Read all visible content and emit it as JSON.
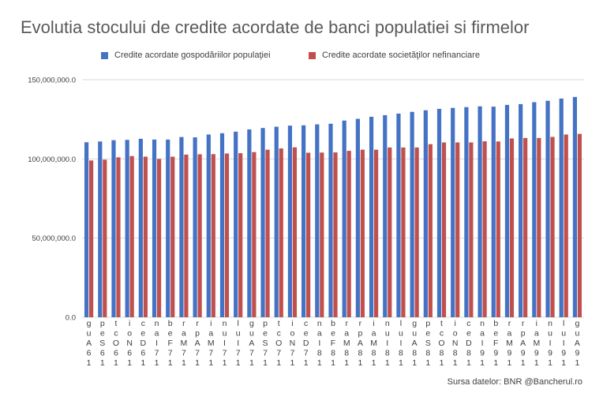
{
  "chart_data": {
    "type": "bar",
    "title": "Evolutia stocului de credite acordate de banci populatiei si firmelor",
    "source": "Sursa datelor: BNR @Bancherul.ro",
    "yticks": [
      "150,000,000.0",
      "100,000,000.0",
      "50,000,000.0",
      "0.0"
    ],
    "ylim": [
      0,
      150000000
    ],
    "grid": true,
    "legend_position": "top",
    "colors": [
      "#4472C4",
      "#C0504D"
    ],
    "categories": [
      "Aug 2016",
      "Sep 2016",
      "Oct 2016",
      "Nov 2016",
      "Dec 2016",
      "Jan 2017",
      "Feb 2017",
      "Mar 2017",
      "Apr 2017",
      "May 2017",
      "Jun 2017",
      "Jul 2017",
      "Aug 2017",
      "Sep 2017",
      "Oct 2017",
      "Nov 2017",
      "Dec 2017",
      "Jan 2018",
      "Feb 2018",
      "Mar 2018",
      "Apr 2018",
      "May 2018",
      "Jun 2018",
      "Jul 2018",
      "Aug 2018",
      "Sep 2018",
      "Oct 2018",
      "Nov 2018",
      "Dec 2018",
      "Jan 2019",
      "Feb 2019",
      "Mar 2019",
      "Apr 2019",
      "May 2019",
      "Jun 2019",
      "Jul 2019",
      "Aug 2019"
    ],
    "series": [
      {
        "name": "Credite acordate gospodăriilor populaţiei",
        "values": [
          110500000,
          111000000,
          111800000,
          112000000,
          112700000,
          112200000,
          112200000,
          113800000,
          113600000,
          115400000,
          116200000,
          117200000,
          118600000,
          119500000,
          120300000,
          121000000,
          121200000,
          121800000,
          122200000,
          124200000,
          125300000,
          126600000,
          127600000,
          128600000,
          129700000,
          130700000,
          131600000,
          132200000,
          132700000,
          133200000,
          133000000,
          134100000,
          134600000,
          135800000,
          136700000,
          138100000,
          139100000
        ]
      },
      {
        "name": "Credite acordate societăţilor nefinanciare",
        "values": [
          99000000,
          99500000,
          101000000,
          101800000,
          101400000,
          100000000,
          101400000,
          102700000,
          102900000,
          103000000,
          103400000,
          103600000,
          104300000,
          105800000,
          106600000,
          107300000,
          103900000,
          104000000,
          104100000,
          105100000,
          105800000,
          105800000,
          107200000,
          107200000,
          107200000,
          109300000,
          110400000,
          110400000,
          110400000,
          111100000,
          111000000,
          112900000,
          113200000,
          113200000,
          113900000,
          115400000,
          115800000
        ]
      }
    ]
  }
}
